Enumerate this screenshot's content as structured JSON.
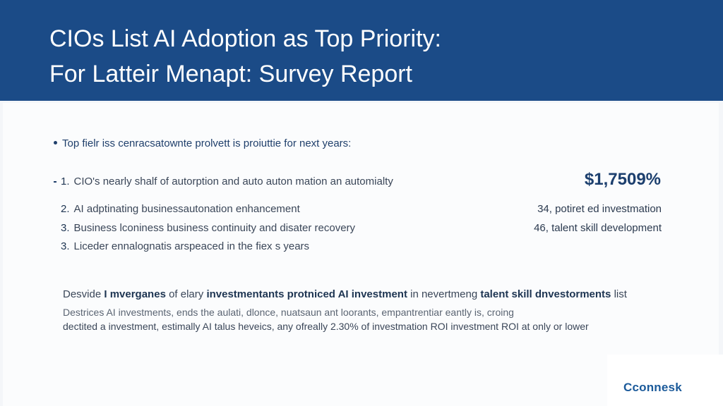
{
  "header": {
    "title_line1": "CIOs List AI Adoption as Top Priority:",
    "title_line2": "For Latteir Menapt: Survey Report"
  },
  "intro": "Top fielr iss cenracsatownte prolvett is proiuttie for next years:",
  "items": [
    {
      "num": "1.",
      "text": "CIO's nearly shalf of autorption and auto auton mation an automialty"
    },
    {
      "num": "2.",
      "text": "AI adptinating businessautonation enhancement"
    },
    {
      "num": "3.",
      "text": "Business lconiness business continuity and disater recovery"
    },
    {
      "num": "3.",
      "text": "Liceder ennalognatis arspeaced in the fiex s years"
    }
  ],
  "stat": "$1,7509%",
  "side": [
    "34, potiret ed investmation",
    "46, talent skill development"
  ],
  "para1": {
    "a": "Desvide ",
    "b": "I mverganes",
    "c": " of elary ",
    "d": "investmentants protniced AI investment",
    "e": " in nevertmeng ",
    "f": "talent skill dnvestorments",
    "g": " list"
  },
  "para2": "Destrices AI investments, ends the aulati, dlonce, nuatsaun ant loorants, empantrentiar eantly is, croing",
  "para3": "dectited a investment, estimally AI talus heveics, any ofreally 2.30% of investmation ROI investment ROI at only or lower",
  "logo": "Cconnesk"
}
